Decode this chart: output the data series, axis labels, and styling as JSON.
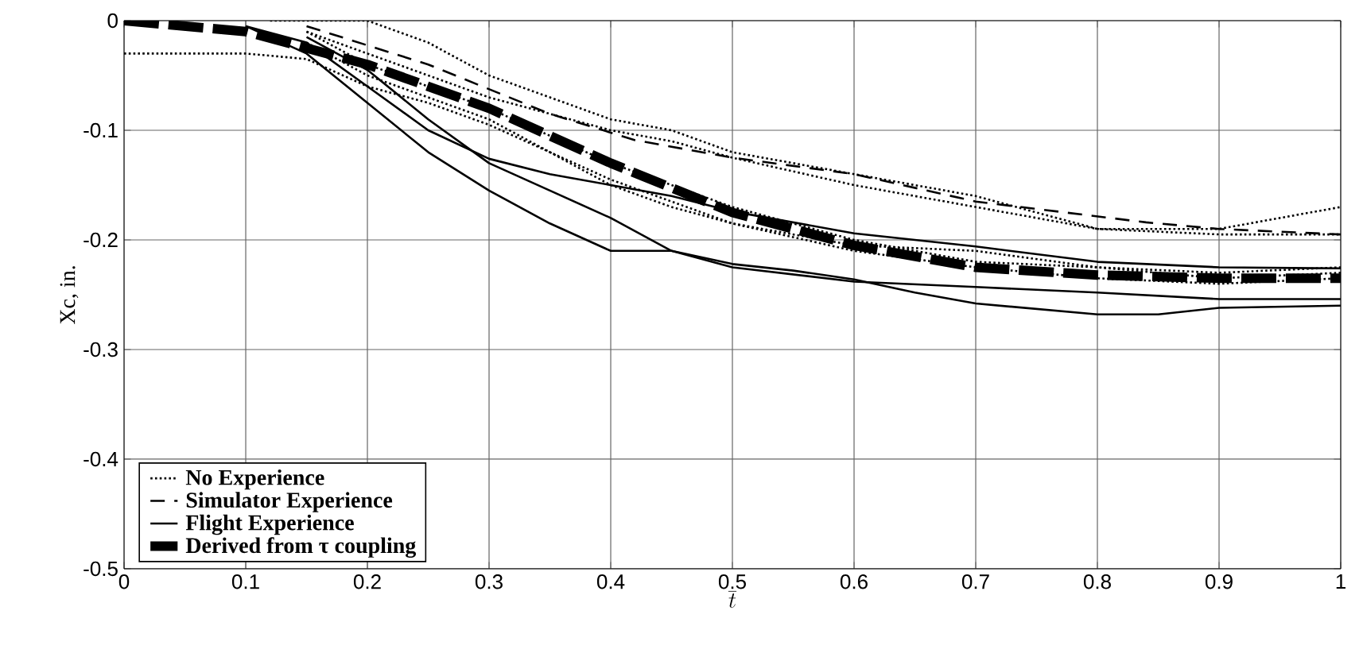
{
  "chart_data": {
    "type": "line",
    "xlabel": "\\overline{t}",
    "ylabel": "Xc, in.",
    "xlim": [
      0,
      1
    ],
    "ylim": [
      -0.5,
      0
    ],
    "xticks": [
      0,
      0.1,
      0.2,
      0.3,
      0.4,
      0.5,
      0.6,
      0.7,
      0.8,
      0.9,
      1
    ],
    "yticks": [
      -0.5,
      -0.4,
      -0.3,
      -0.2,
      -0.1,
      0
    ],
    "grid": true,
    "legend": "bottom left",
    "marker": "none",
    "series": [
      {
        "name": "No Experience",
        "color": "#000000",
        "line_style": "dotted",
        "x": [
          0.12,
          0.2,
          0.25,
          0.3,
          0.35,
          0.4,
          0.45,
          0.5,
          0.55,
          0.6,
          0.7,
          0.8,
          0.9,
          0.95,
          1.0
        ],
        "values": [
          0,
          0,
          -0.02,
          -0.05,
          -0.07,
          -0.09,
          -0.1,
          -0.12,
          -0.13,
          -0.14,
          -0.16,
          -0.19,
          -0.19,
          -0.18,
          -0.17
        ]
      },
      {
        "color": "#000000",
        "line_style": "dotted",
        "x": [
          0,
          0.1,
          0.15,
          0.2,
          0.25,
          0.3,
          0.35,
          0.4,
          0.45,
          0.5,
          0.6,
          0.7,
          0.8,
          0.9,
          1.0
        ],
        "values": [
          -0.03,
          -0.03,
          -0.035,
          -0.06,
          -0.075,
          -0.095,
          -0.12,
          -0.145,
          -0.165,
          -0.185,
          -0.21,
          -0.225,
          -0.235,
          -0.24,
          -0.235
        ]
      },
      {
        "color": "#000000",
        "line_style": "dotted",
        "x": [
          0.15,
          0.2,
          0.3,
          0.4,
          0.45,
          0.5,
          0.6,
          0.7,
          0.8,
          0.9,
          1.0
        ],
        "values": [
          -0.01,
          -0.03,
          -0.07,
          -0.1,
          -0.11,
          -0.125,
          -0.15,
          -0.17,
          -0.19,
          -0.195,
          -0.195
        ]
      },
      {
        "color": "#000000",
        "line_style": "dotted",
        "x": [
          0.15,
          0.2,
          0.3,
          0.4,
          0.45,
          0.5,
          0.6,
          0.7,
          0.8,
          0.9,
          1.0
        ],
        "values": [
          -0.01,
          -0.04,
          -0.08,
          -0.13,
          -0.15,
          -0.17,
          -0.2,
          -0.22,
          -0.225,
          -0.23,
          -0.225
        ]
      },
      {
        "color": "#000000",
        "line_style": "dotted",
        "x": [
          0.15,
          0.2,
          0.3,
          0.4,
          0.45,
          0.5,
          0.6,
          0.7,
          0.8,
          0.9,
          1.0
        ],
        "values": [
          -0.02,
          -0.05,
          -0.09,
          -0.15,
          -0.17,
          -0.185,
          -0.205,
          -0.21,
          -0.225,
          -0.235,
          -0.23
        ]
      },
      {
        "name": "Simulator Experience",
        "color": "#000000",
        "line_style": "dashed",
        "x": [
          0.15,
          0.25,
          0.35,
          0.42,
          0.5,
          0.6,
          0.7,
          0.84,
          0.9,
          1.0
        ],
        "values": [
          -0.005,
          -0.04,
          -0.085,
          -0.109,
          -0.125,
          -0.14,
          -0.165,
          -0.184,
          -0.19,
          -0.195
        ]
      },
      {
        "name": "Flight Experience",
        "color": "#000000",
        "line_style": "solid",
        "x": [
          0.1,
          0.15,
          0.2,
          0.25,
          0.3,
          0.35,
          0.4,
          0.45,
          0.5,
          0.6,
          0.7,
          0.8,
          0.9,
          1.0
        ],
        "values": [
          -0.005,
          -0.02,
          -0.06,
          -0.1,
          -0.126,
          -0.14,
          -0.15,
          -0.16,
          -0.174,
          -0.194,
          -0.206,
          -0.22,
          -0.225,
          -0.226
        ]
      },
      {
        "color": "#000000",
        "line_style": "solid",
        "x": [
          0.1,
          0.15,
          0.2,
          0.25,
          0.3,
          0.35,
          0.4,
          0.45,
          0.5,
          0.6,
          0.7,
          0.8,
          0.9,
          1.0
        ],
        "values": [
          -0.005,
          -0.03,
          -0.075,
          -0.12,
          -0.155,
          -0.185,
          -0.21,
          -0.21,
          -0.225,
          -0.238,
          -0.243,
          -0.248,
          -0.254,
          -0.254
        ]
      },
      {
        "color": "#000000",
        "line_style": "solid",
        "x": [
          0.15,
          0.2,
          0.25,
          0.3,
          0.35,
          0.4,
          0.45,
          0.5,
          0.55,
          0.6,
          0.65,
          0.7,
          0.8,
          0.85,
          0.9,
          1.0
        ],
        "values": [
          -0.015,
          -0.045,
          -0.09,
          -0.13,
          -0.155,
          -0.18,
          -0.21,
          -0.222,
          -0.228,
          -0.236,
          -0.248,
          -0.258,
          -0.268,
          -0.268,
          -0.262,
          -0.26
        ]
      },
      {
        "name": "Derived from τ coupling",
        "color": "#000000",
        "line_style": "dashed",
        "x": [
          0,
          0.1,
          0.2,
          0.3,
          0.4,
          0.5,
          0.6,
          0.7,
          0.8,
          0.9,
          1.0
        ],
        "values": [
          0,
          -0.01,
          -0.04,
          -0.08,
          -0.13,
          -0.175,
          -0.205,
          -0.225,
          -0.232,
          -0.235,
          -0.235
        ]
      }
    ]
  }
}
